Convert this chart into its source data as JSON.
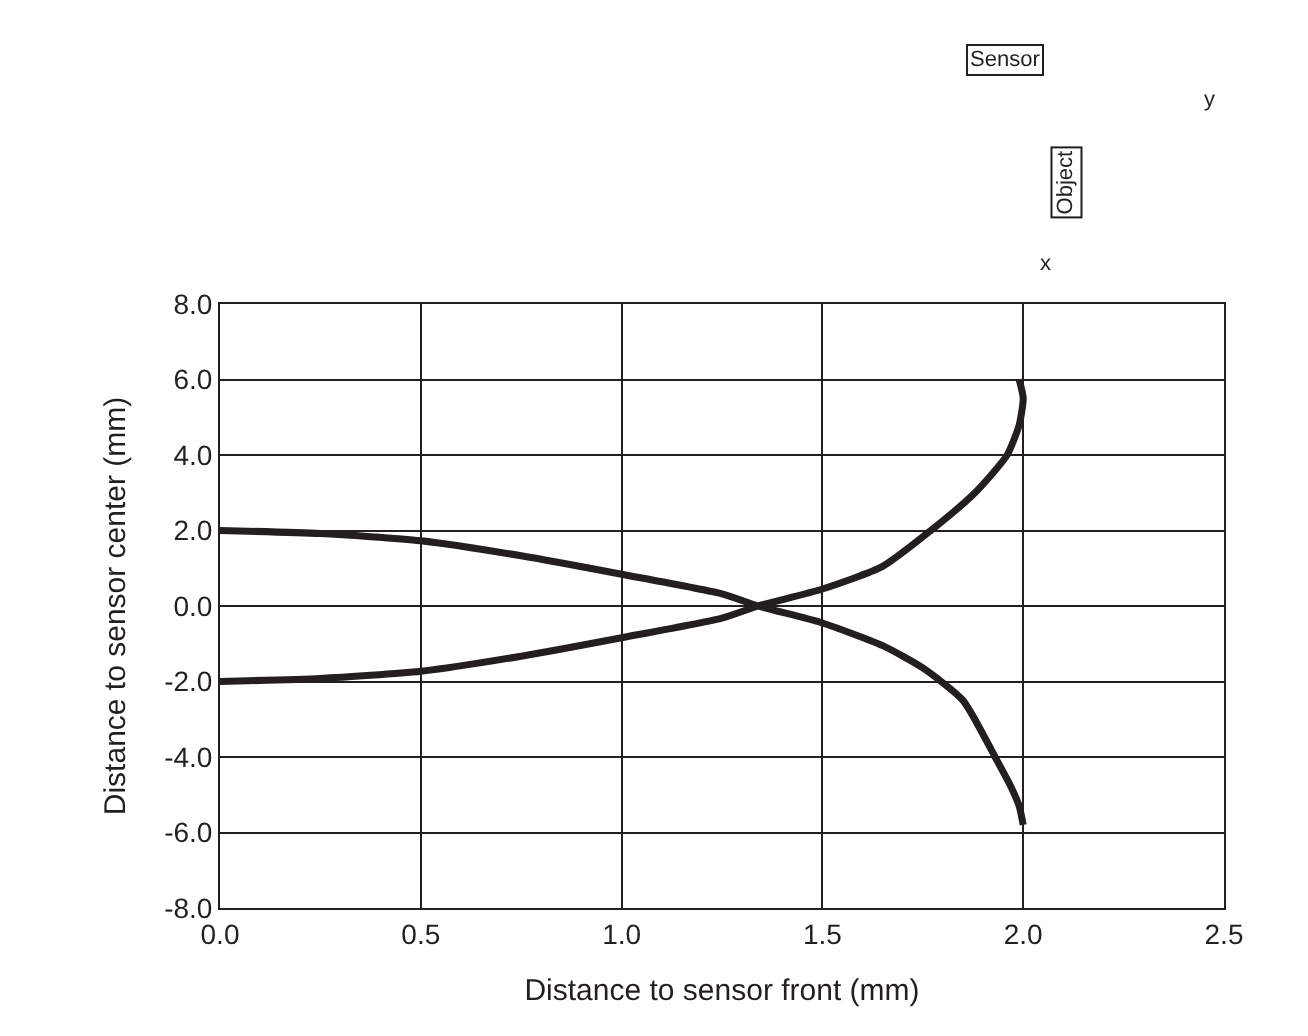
{
  "chart_data": {
    "type": "line",
    "xlabel": "Distance to sensor front (mm)",
    "ylabel": "Distance to sensor center (mm)",
    "series": [
      {
        "color": "#231f20",
        "x": [
          0.0,
          0.25,
          0.5,
          0.75,
          1.0,
          1.25,
          1.34,
          1.5,
          1.65,
          1.75,
          1.85,
          1.93,
          1.97,
          1.99,
          2.0
        ],
        "values": [
          2.0,
          1.92,
          1.73,
          1.33,
          0.84,
          0.32,
          0.0,
          -0.45,
          -1.05,
          -1.64,
          -2.5,
          -4.0,
          -4.8,
          -5.3,
          -5.8
        ]
      },
      {
        "color": "#231f20",
        "x": [
          0.0,
          0.25,
          0.5,
          0.75,
          1.0,
          1.25,
          1.34,
          1.5,
          1.65,
          1.77,
          1.88,
          1.96,
          1.99,
          2.0,
          1.99
        ],
        "values": [
          -2.0,
          -1.92,
          -1.73,
          -1.33,
          -0.84,
          -0.32,
          0.0,
          0.45,
          1.05,
          2.0,
          3.0,
          4.0,
          4.8,
          5.5,
          6.0
        ]
      }
    ],
    "xlim": [
      0,
      2.5
    ],
    "xticks": [
      {
        "value": 0,
        "label": "0.0"
      },
      0.5,
      {
        "value": 1,
        "label": "1.0"
      },
      1.5,
      {
        "value": 2,
        "label": "2.0"
      },
      2.5
    ],
    "ylim": [
      -8,
      8
    ],
    "yticks": [
      {
        "value": -8,
        "label": "-8.0"
      },
      {
        "value": -6,
        "label": "-6.0"
      },
      {
        "value": -4,
        "label": "-4.0"
      },
      {
        "value": -2,
        "label": "-2.0"
      },
      {
        "value": 0,
        "label": "0.0"
      },
      {
        "value": 2,
        "label": "2.0"
      },
      {
        "value": 4,
        "label": "4.0"
      },
      {
        "value": 6,
        "label": "6.0"
      },
      {
        "value": 8,
        "label": "8.0"
      }
    ],
    "grid": true,
    "marker": "none",
    "line_style": "solid",
    "annotations": [
      "Sensor",
      "Object",
      "x",
      "y"
    ]
  }
}
